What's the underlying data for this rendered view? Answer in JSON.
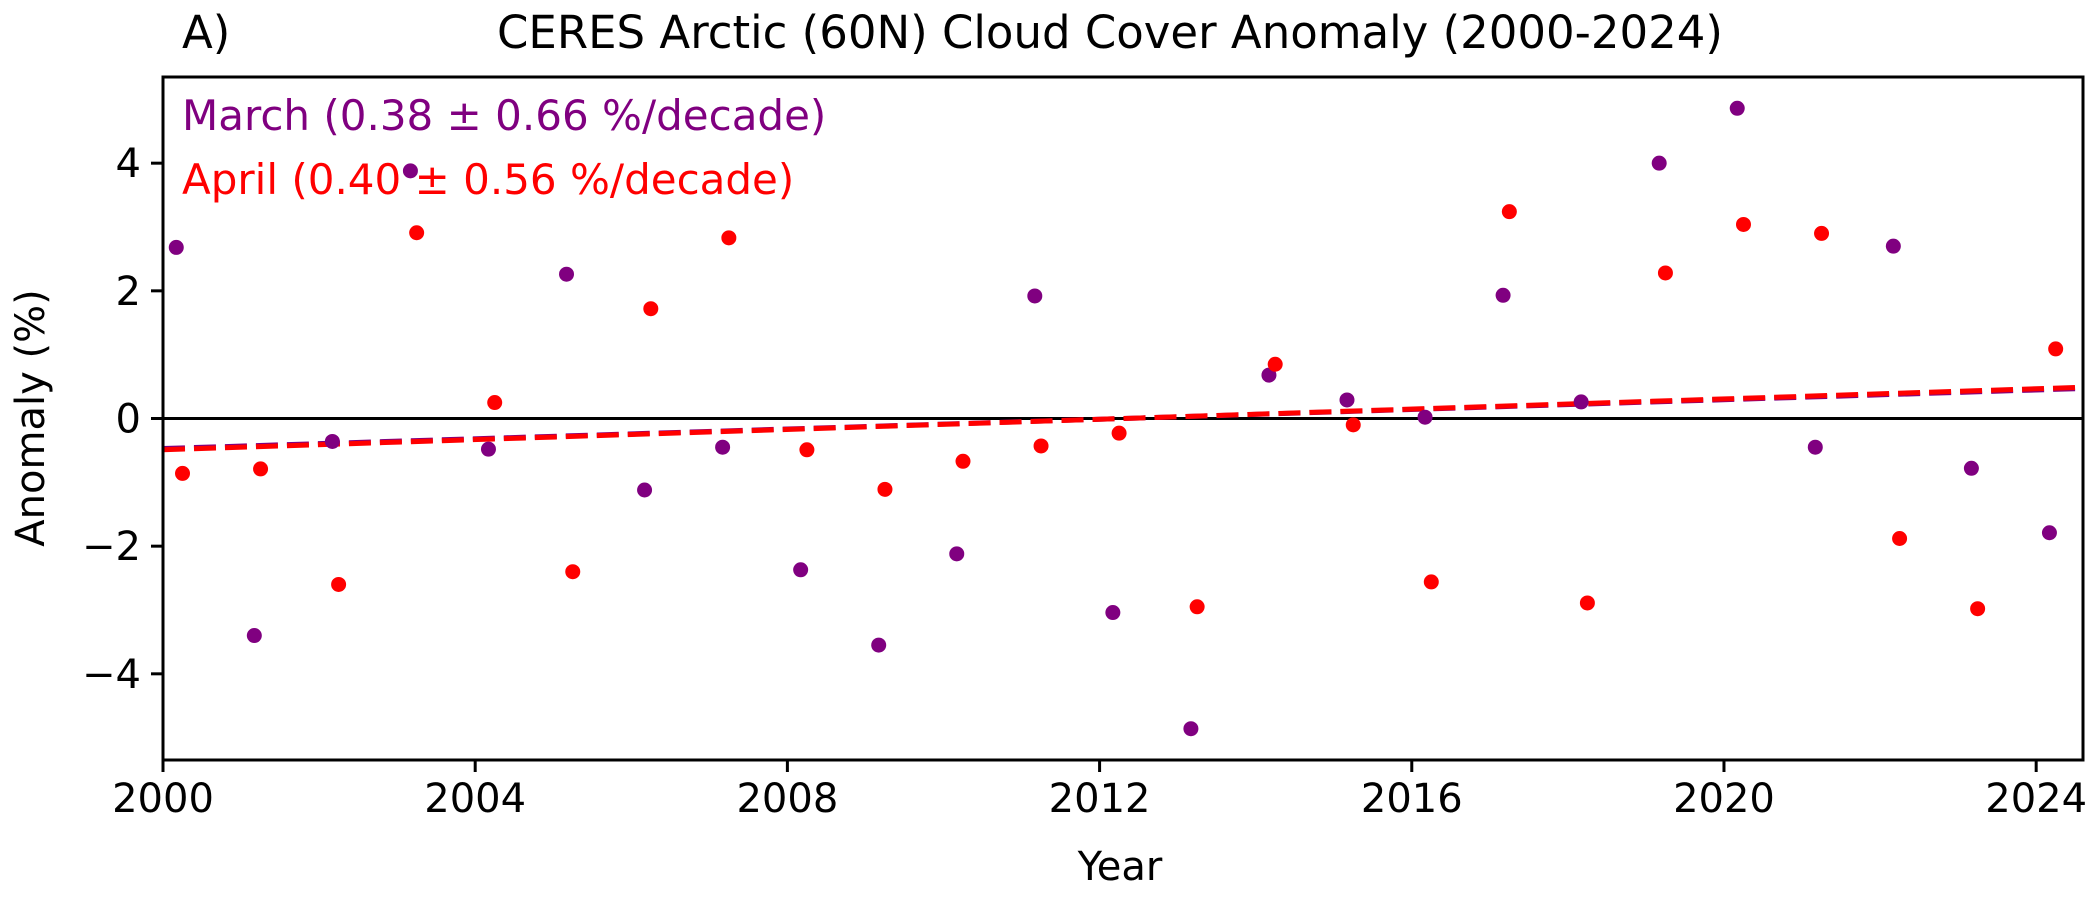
{
  "panel_label": "A)",
  "chart_data": {
    "type": "scatter",
    "title": "CERES Arctic (60N) Cloud Cover Anomaly (2000-2024)",
    "xlabel": "Year",
    "ylabel": "Anomaly (%)",
    "xlim": [
      2000,
      2024.6
    ],
    "ylim": [
      -5.35,
      5.35
    ],
    "x_ticks": [
      2000,
      2004,
      2008,
      2012,
      2016,
      2020,
      2024
    ],
    "x_tick_labels": [
      "2000",
      "2004",
      "2008",
      "2012",
      "2016",
      "2020",
      "2024"
    ],
    "y_ticks": [
      -4,
      -2,
      0,
      2,
      4
    ],
    "y_tick_labels": [
      "−4",
      "−2",
      "0",
      "2",
      "4"
    ],
    "grid": false,
    "legend_position": "top-left",
    "zero_line": true,
    "series": [
      {
        "name": "March (0.38 ± 0.66 %/decade)",
        "color": "#800080",
        "x": [
          2000.17,
          2001.17,
          2002.17,
          2003.17,
          2004.17,
          2005.17,
          2006.17,
          2007.17,
          2008.17,
          2009.17,
          2010.17,
          2011.17,
          2012.17,
          2013.17,
          2014.17,
          2015.17,
          2016.17,
          2017.17,
          2018.17,
          2019.17,
          2020.17,
          2021.17,
          2022.17,
          2023.17,
          2024.17
        ],
        "values": [
          2.68,
          -3.4,
          -0.36,
          3.88,
          -0.48,
          2.26,
          -1.12,
          -0.45,
          -2.37,
          -3.55,
          -2.12,
          1.92,
          -3.04,
          -4.86,
          0.68,
          0.29,
          0.02,
          1.93,
          0.26,
          4.0,
          4.86,
          -0.45,
          2.7,
          -0.78,
          -1.79
        ],
        "trend": {
          "x": [
            2000,
            2024.6
          ],
          "y": [
            -0.47,
            0.47
          ]
        }
      },
      {
        "name": "April (0.40 ± 0.56 %/decade)",
        "color": "#ff0000",
        "x": [
          2000.25,
          2001.25,
          2002.25,
          2003.25,
          2004.25,
          2005.25,
          2006.25,
          2007.25,
          2008.25,
          2009.25,
          2010.25,
          2011.25,
          2012.25,
          2013.25,
          2014.25,
          2015.25,
          2016.25,
          2017.25,
          2018.25,
          2019.25,
          2020.25,
          2021.25,
          2022.25,
          2023.25,
          2024.25
        ],
        "values": [
          -0.86,
          -0.79,
          -2.6,
          2.91,
          0.25,
          -2.4,
          1.72,
          2.83,
          -0.49,
          -1.11,
          -0.67,
          -0.43,
          -0.23,
          -2.95,
          0.85,
          -0.1,
          -2.56,
          3.24,
          -2.89,
          2.28,
          3.04,
          2.9,
          -1.88,
          -2.98,
          1.09
        ],
        "trend": {
          "x": [
            2000,
            2024.6
          ],
          "y": [
            -0.49,
            0.49
          ]
        }
      }
    ]
  }
}
